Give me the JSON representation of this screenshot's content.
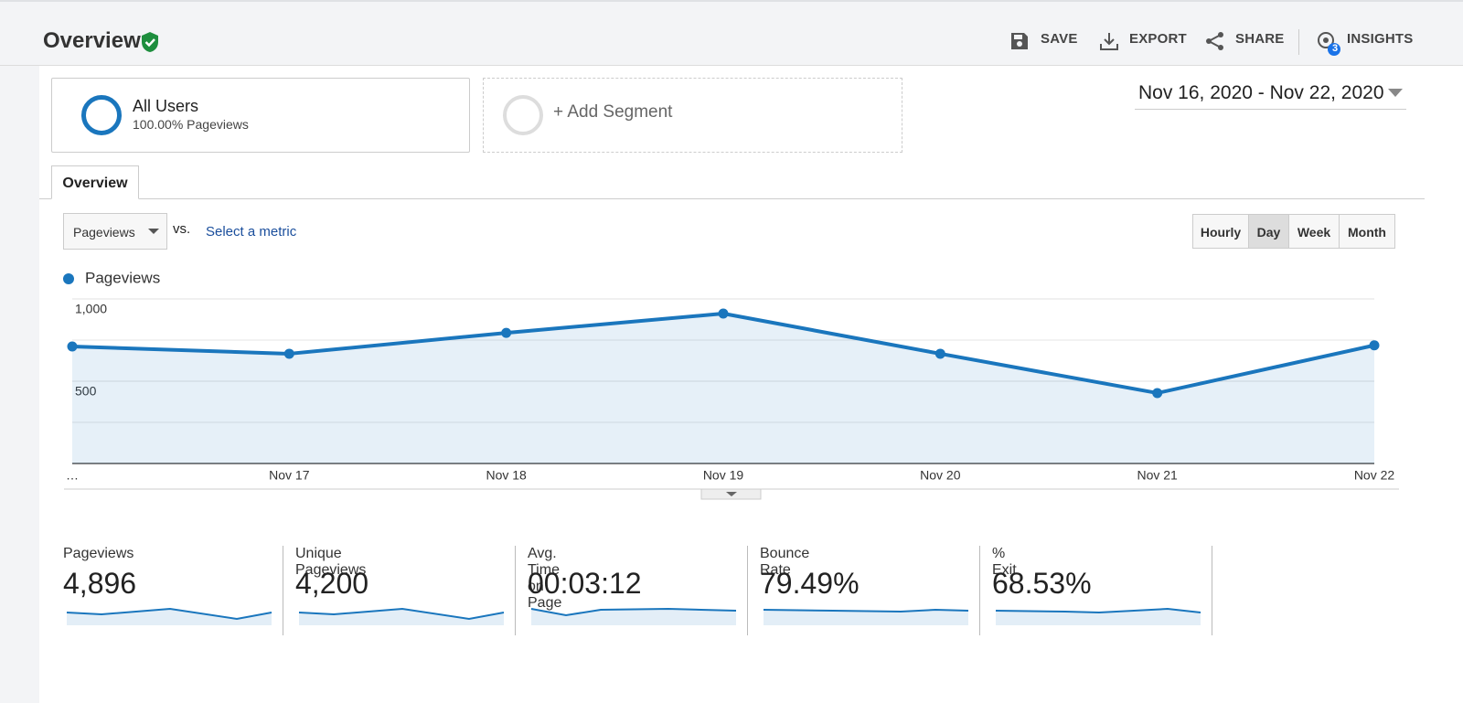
{
  "header": {
    "title": "Overview",
    "actions": [
      "SAVE",
      "EXPORT",
      "SHARE",
      "INSIGHTS"
    ],
    "insights_badge": "3"
  },
  "segments": [
    {
      "name": "All Users",
      "detail": "100.00% Pageviews"
    }
  ],
  "add_segment": "+ Add Segment",
  "date_range": "Nov 16, 2020 - Nov 22, 2020",
  "tab": "Overview",
  "metric_select": "Pageviews",
  "vs": "vs.",
  "select_metric": "Select a metric",
  "granularity": {
    "options": [
      "Hourly",
      "Day",
      "Week",
      "Month"
    ],
    "active": 1
  },
  "chart_data": {
    "type": "line",
    "categories": [
      "…",
      "Nov 17",
      "Nov 18",
      "Nov 19",
      "Nov 20",
      "Nov 21",
      "Nov 22"
    ],
    "series": [
      {
        "name": "Pageviews",
        "color": "#1a76bd",
        "values": [
          711,
          667,
          794,
          911,
          667,
          428,
          718
        ]
      }
    ],
    "ylim": [
      0,
      1000
    ],
    "yticks": [
      500,
      {
        "value": 1000,
        "label": "1,000"
      }
    ],
    "minor_grid": [
      250,
      750
    ],
    "area": true,
    "legend": "top-left"
  },
  "metrics": [
    {
      "label": "Pageviews",
      "value": "4,896"
    },
    {
      "label": "Unique Pageviews",
      "value": "4,200"
    },
    {
      "label": "Avg. Time on Page",
      "value": "00:03:12"
    },
    {
      "label": "Bounce Rate",
      "value": "79.49%"
    },
    {
      "label": "% Exit",
      "value": "68.53%"
    }
  ]
}
